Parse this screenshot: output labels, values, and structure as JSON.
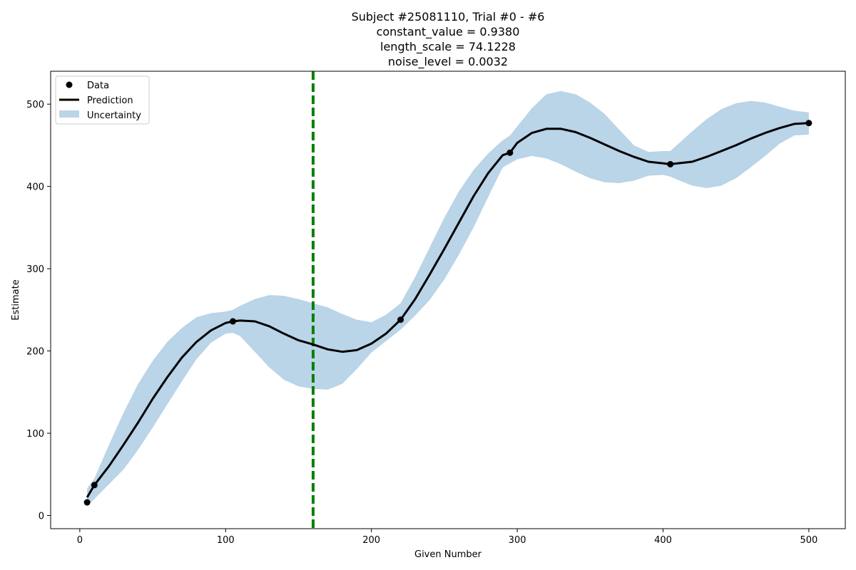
{
  "chart_data": {
    "type": "line",
    "title_lines": [
      "Subject #25081110, Trial #0 - #6",
      "constant_value = 0.9380",
      "length_scale = 74.1228",
      "noise_level = 0.0032"
    ],
    "xlabel": "Given Number",
    "ylabel": "Estimate",
    "xlim": [
      -20,
      525
    ],
    "ylim": [
      -16,
      540
    ],
    "xticks": [
      0,
      100,
      200,
      300,
      400,
      500
    ],
    "yticks": [
      0,
      100,
      200,
      300,
      400,
      500
    ],
    "legend": {
      "placement": "top-left",
      "entries": [
        "Data",
        "Prediction",
        "Uncertainty"
      ]
    },
    "colors": {
      "data": "#000000",
      "prediction": "#000000",
      "uncertainty": "#bad4e8",
      "vline": "#008000"
    },
    "vline_x": 160,
    "data_points": [
      {
        "x": 5,
        "y": 16
      },
      {
        "x": 10,
        "y": 37
      },
      {
        "x": 105,
        "y": 236
      },
      {
        "x": 220,
        "y": 238
      },
      {
        "x": 295,
        "y": 441
      },
      {
        "x": 405,
        "y": 427
      },
      {
        "x": 500,
        "y": 477
      }
    ],
    "prediction": {
      "x": [
        5,
        10,
        20,
        30,
        40,
        50,
        60,
        70,
        80,
        90,
        100,
        105,
        110,
        120,
        130,
        140,
        150,
        160,
        170,
        180,
        190,
        200,
        210,
        220,
        230,
        240,
        250,
        260,
        270,
        280,
        290,
        295,
        300,
        310,
        320,
        330,
        340,
        350,
        360,
        370,
        380,
        390,
        400,
        405,
        410,
        420,
        430,
        440,
        450,
        460,
        470,
        480,
        490,
        500
      ],
      "y": [
        22,
        37,
        60,
        86,
        113,
        142,
        168,
        192,
        211,
        225,
        234,
        236,
        237,
        236,
        230,
        221,
        213,
        208,
        202,
        199,
        201,
        209,
        221,
        238,
        263,
        293,
        324,
        356,
        388,
        416,
        438,
        441,
        453,
        465,
        470,
        470,
        466,
        459,
        451,
        443,
        436,
        430,
        428,
        427,
        428,
        430,
        436,
        443,
        450,
        458,
        465,
        471,
        476,
        477
      ]
    },
    "uncertainty": {
      "upper": [
        33,
        45,
        86,
        125,
        160,
        188,
        211,
        228,
        241,
        246,
        248,
        250,
        255,
        263,
        268,
        267,
        263,
        258,
        253,
        245,
        238,
        235,
        244,
        258,
        290,
        326,
        362,
        394,
        420,
        440,
        456,
        462,
        473,
        495,
        512,
        516,
        512,
        502,
        488,
        469,
        450,
        442,
        443,
        443,
        451,
        467,
        482,
        494,
        501,
        504,
        502,
        497,
        492,
        490
      ],
      "lower": [
        11,
        20,
        38,
        56,
        80,
        107,
        135,
        163,
        190,
        210,
        221,
        222,
        218,
        199,
        180,
        165,
        157,
        154,
        153,
        160,
        178,
        198,
        212,
        226,
        243,
        262,
        287,
        317,
        350,
        387,
        423,
        428,
        433,
        437,
        434,
        427,
        418,
        410,
        405,
        404,
        407,
        413,
        414,
        412,
        408,
        401,
        398,
        401,
        410,
        423,
        437,
        452,
        462,
        463
      ]
    }
  }
}
